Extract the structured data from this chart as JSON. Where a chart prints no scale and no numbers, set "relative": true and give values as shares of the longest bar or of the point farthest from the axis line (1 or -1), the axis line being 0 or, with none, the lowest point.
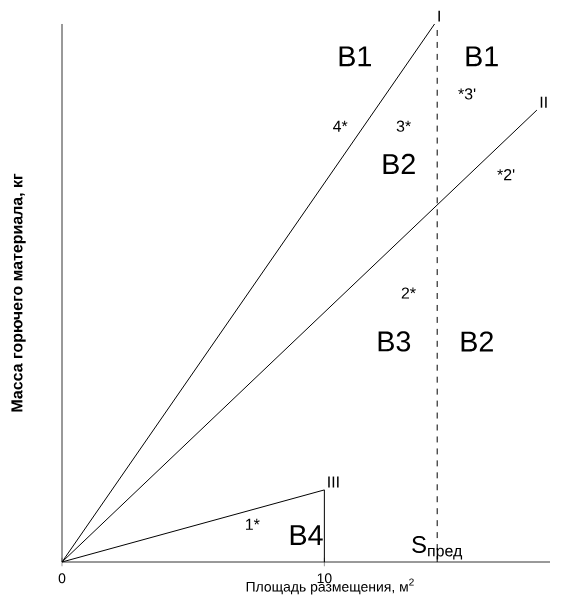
{
  "chart_data": {
    "type": "line",
    "relative": true,
    "xlabel": "Площадь размещения, м$^{2}$",
    "ylabel": "Масса горючего материала, кг",
    "xlim": [
      0,
      18.6
    ],
    "xticks": [
      0,
      10
    ],
    "tick_labels": "x",
    "series": [
      {
        "name": "I",
        "color": "#000000",
        "x": [
          0,
          14.2
        ],
        "values": [
          0,
          1
        ]
      },
      {
        "name": "II",
        "color": "#000000",
        "x": [
          0,
          18.1
        ],
        "values": [
          0,
          0.84
        ]
      },
      {
        "name": "III",
        "color": "#000000",
        "x": [
          0,
          10,
          10
        ],
        "values": [
          0,
          0.134,
          0
        ]
      }
    ],
    "ref_lines": [
      {
        "axis": "x",
        "value": 14.3,
        "label": "S$_{пред}$",
        "line_style": "dashed"
      }
    ],
    "annotations": [
      "1*",
      "2*",
      "3*",
      "4*",
      "*3'",
      "*2'",
      "B1",
      "B1",
      "B2",
      "B3",
      "B2",
      "B4"
    ]
  }
}
